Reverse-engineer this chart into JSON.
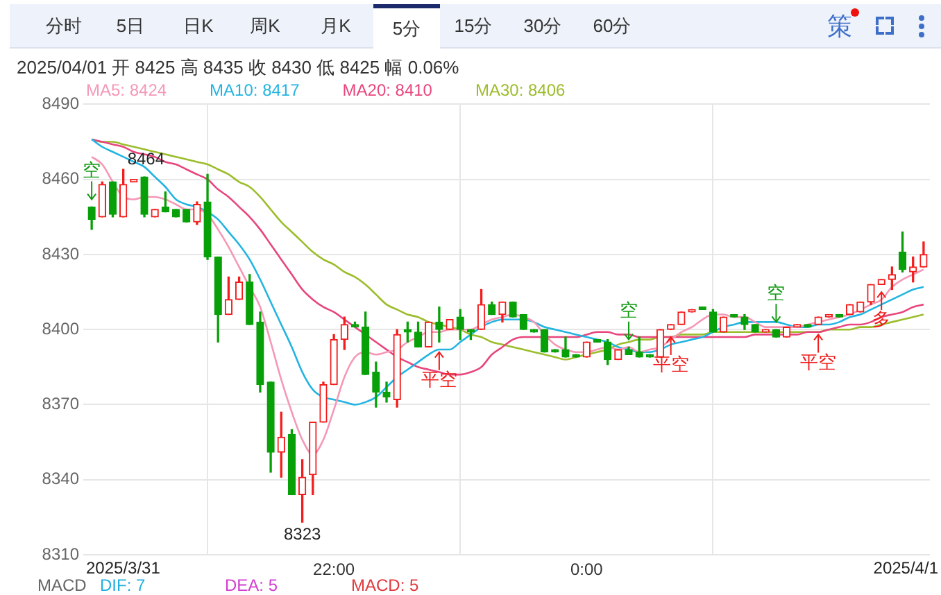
{
  "chart_data": {
    "type": "candlestick",
    "subtitle": "2025/04/01 开 8425 高 8435 收 8430 低 8425 幅 0.06%",
    "annotations": [
      "分时",
      "5日",
      "日K",
      "周K",
      "月K",
      "5分",
      "15分",
      "30分",
      "60分",
      "策",
      "2025/3/31",
      "2025/4/1",
      "MACD",
      "DIF: 7",
      "DEA: 5",
      "MACD: 5",
      {
        "text": "8464",
        "x": "2025-03-31T20:20",
        "y": 8464
      },
      {
        "text": "8323",
        "x": "2025-03-31T21:45",
        "y": 8323
      },
      {
        "text": "空",
        "x": "2025-03-31T20:05",
        "y": 8452
      },
      {
        "text": "平空",
        "x": "2025-03-31T22:50",
        "y": 8391
      },
      {
        "text": "空",
        "x": "2025-04-01T00:20",
        "y": 8396
      },
      {
        "text": "平空",
        "x": "2025-04-01T00:40",
        "y": 8397
      },
      {
        "text": "空",
        "x": "2025-04-01T01:30",
        "y": 8403
      },
      {
        "text": "平空",
        "x": "2025-04-01T01:50",
        "y": 8398
      },
      {
        "text": "多",
        "x": "2025-04-01T02:20",
        "y": 8415
      }
    ],
    "x": [
      "2025-03-31T20:05",
      "2025-03-31T20:10",
      "2025-03-31T20:15",
      "2025-03-31T20:20",
      "2025-03-31T20:25",
      "2025-03-31T20:30",
      "2025-03-31T20:35",
      "2025-03-31T20:40",
      "2025-03-31T20:45",
      "2025-03-31T20:50",
      "2025-03-31T20:55",
      "2025-03-31T21:00",
      "2025-03-31T21:05",
      "2025-03-31T21:10",
      "2025-03-31T21:15",
      "2025-03-31T21:20",
      "2025-03-31T21:25",
      "2025-03-31T21:30",
      "2025-03-31T21:35",
      "2025-03-31T21:40",
      "2025-03-31T21:45",
      "2025-03-31T21:50",
      "2025-03-31T21:55",
      "2025-03-31T22:00",
      "2025-03-31T22:05",
      "2025-03-31T22:10",
      "2025-03-31T22:15",
      "2025-03-31T22:20",
      "2025-03-31T22:25",
      "2025-03-31T22:30",
      "2025-03-31T22:35",
      "2025-03-31T22:40",
      "2025-03-31T22:45",
      "2025-03-31T22:50",
      "2025-03-31T22:55",
      "2025-03-31T23:00",
      "2025-03-31T23:05",
      "2025-03-31T23:10",
      "2025-03-31T23:15",
      "2025-03-31T23:20",
      "2025-03-31T23:25",
      "2025-03-31T23:30",
      "2025-03-31T23:35",
      "2025-03-31T23:40",
      "2025-03-31T23:45",
      "2025-03-31T23:50",
      "2025-03-31T23:55",
      "2025-04-01T00:00",
      "2025-04-01T00:05",
      "2025-04-01T00:10",
      "2025-04-01T00:15",
      "2025-04-01T00:20",
      "2025-04-01T00:25",
      "2025-04-01T00:30",
      "2025-04-01T00:35",
      "2025-04-01T00:40",
      "2025-04-01T00:45",
      "2025-04-01T00:50",
      "2025-04-01T00:55",
      "2025-04-01T01:00",
      "2025-04-01T01:05",
      "2025-04-01T01:10",
      "2025-04-01T01:15",
      "2025-04-01T01:20",
      "2025-04-01T01:25",
      "2025-04-01T01:30",
      "2025-04-01T01:35",
      "2025-04-01T01:40",
      "2025-04-01T01:45",
      "2025-04-01T01:50",
      "2025-04-01T01:55",
      "2025-04-01T02:00",
      "2025-04-01T02:05",
      "2025-04-01T02:10",
      "2025-04-01T02:15",
      "2025-04-01T02:20",
      "2025-04-01T02:25",
      "2025-04-01T02:30",
      "2025-04-01T02:35",
      "2025-04-01T02:40"
    ],
    "ohlc": [
      [
        8449,
        8449,
        8440,
        8444
      ],
      [
        8445,
        8459,
        8445,
        8458
      ],
      [
        8459,
        8459,
        8445,
        8446
      ],
      [
        8445,
        8464,
        8445,
        8458
      ],
      [
        8459,
        8460,
        8459,
        8460
      ],
      [
        8461,
        8461,
        8445,
        8446
      ],
      [
        8445,
        8448,
        8445,
        8448
      ],
      [
        8449,
        8455,
        8447,
        8447
      ],
      [
        8448,
        8448,
        8445,
        8445
      ],
      [
        8448,
        8448,
        8443,
        8443
      ],
      [
        8443,
        8451,
        8442,
        8450
      ],
      [
        8451,
        8462,
        8428,
        8429
      ],
      [
        8429,
        8429,
        8395,
        8406
      ],
      [
        8406,
        8421,
        8406,
        8412
      ],
      [
        8412,
        8421,
        8412,
        8419
      ],
      [
        8419,
        8422,
        8402,
        8402
      ],
      [
        8403,
        8407,
        8375,
        8378
      ],
      [
        8379,
        8379,
        8343,
        8351
      ],
      [
        8351,
        8367,
        8341,
        8357
      ],
      [
        8358,
        8360,
        8334,
        8334
      ],
      [
        8334,
        8348,
        8323,
        8341
      ],
      [
        8342,
        8363,
        8334,
        8363
      ],
      [
        8363,
        8379,
        8363,
        8378
      ],
      [
        8378,
        8398,
        8378,
        8396
      ],
      [
        8396,
        8405,
        8392,
        8402
      ],
      [
        8402,
        8403,
        8401,
        8401
      ],
      [
        8401,
        8407,
        8382,
        8382
      ],
      [
        8383,
        8387,
        8369,
        8375
      ],
      [
        8375,
        8379,
        8371,
        8373
      ],
      [
        8372,
        8400,
        8369,
        8398
      ],
      [
        8400,
        8403,
        8395,
        8399
      ],
      [
        8399,
        8403,
        8393,
        8393
      ],
      [
        8393,
        8403,
        8393,
        8403
      ],
      [
        8403,
        8409,
        8395,
        8400
      ],
      [
        8400,
        8404,
        8400,
        8404
      ],
      [
        8405,
        8408,
        8396,
        8400
      ],
      [
        8400,
        8400,
        8396,
        8399
      ],
      [
        8400,
        8416,
        8400,
        8410
      ],
      [
        8410,
        8411,
        8406,
        8406
      ],
      [
        8406,
        8411,
        8403,
        8411
      ],
      [
        8411,
        8411,
        8405,
        8405
      ],
      [
        8406,
        8406,
        8400,
        8400
      ],
      [
        8400,
        8400,
        8399,
        8399
      ],
      [
        8400,
        8400,
        8391,
        8391
      ],
      [
        8392,
        8392,
        8391,
        8391
      ],
      [
        8392,
        8397,
        8389,
        8389
      ],
      [
        8390,
        8390,
        8389,
        8389
      ],
      [
        8389,
        8395,
        8389,
        8395
      ],
      [
        8396,
        8396,
        8395,
        8395
      ],
      [
        8395,
        8396,
        8386,
        8388
      ],
      [
        8388,
        8392,
        8388,
        8392
      ],
      [
        8392,
        8393,
        8390,
        8390
      ],
      [
        8391,
        8397,
        8389,
        8389
      ],
      [
        8390,
        8390,
        8389,
        8389
      ],
      [
        8389,
        8400,
        8389,
        8400
      ],
      [
        8400,
        8402,
        8400,
        8402
      ],
      [
        8402,
        8407,
        8402,
        8407
      ],
      [
        8407,
        8408,
        8407,
        8408
      ],
      [
        8409,
        8409,
        8408,
        8408
      ],
      [
        8407,
        8408,
        8399,
        8399
      ],
      [
        8399,
        8405,
        8399,
        8405
      ],
      [
        8406,
        8406,
        8405,
        8405
      ],
      [
        8405,
        8406,
        8400,
        8402
      ],
      [
        8402,
        8402,
        8399,
        8399
      ],
      [
        8399,
        8400,
        8399,
        8400
      ],
      [
        8400,
        8400,
        8397,
        8397
      ],
      [
        8397,
        8401,
        8397,
        8401
      ],
      [
        8401,
        8402,
        8401,
        8402
      ],
      [
        8402,
        8402,
        8401,
        8401
      ],
      [
        8402,
        8405,
        8402,
        8405
      ],
      [
        8405,
        8406,
        8405,
        8406
      ],
      [
        8406,
        8406,
        8405,
        8405
      ],
      [
        8406,
        8410,
        8406,
        8410
      ],
      [
        8407,
        8411,
        8407,
        8411
      ],
      [
        8411,
        8418,
        8410,
        8418
      ],
      [
        8418,
        8420,
        8418,
        8420
      ],
      [
        8420,
        8425,
        8416,
        8422
      ],
      [
        8431,
        8439,
        8423,
        8424
      ],
      [
        8423,
        8429,
        8419,
        8425
      ],
      [
        8425,
        8435,
        8425,
        8430
      ]
    ],
    "series": [
      {
        "name": "MA5: 8424",
        "type": "line",
        "color": "#f598b6",
        "values": [
          8469,
          8466,
          8459,
          8453,
          8452,
          8453,
          8453,
          8452,
          8450,
          8448,
          8448,
          8446,
          8440,
          8433,
          8425,
          8417,
          8409,
          8395,
          8380,
          8367,
          8356,
          8350,
          8356,
          8368,
          8381,
          8389,
          8391,
          8390,
          8391,
          8392,
          8395,
          8397,
          8399,
          8399,
          8400,
          8400,
          8400,
          8402,
          8404,
          8405,
          8406,
          8405,
          8403,
          8398,
          8394,
          8392,
          8391,
          8391,
          8392,
          8393,
          8392,
          8393,
          8391,
          8392,
          8393,
          8396,
          8399,
          8401,
          8404,
          8406,
          8406,
          8405,
          8405,
          8403,
          8401,
          8401,
          8401,
          8401,
          8402,
          8403,
          8404,
          8405,
          8406,
          8408,
          8410,
          8412,
          8417,
          8420,
          8422,
          8424
        ]
      },
      {
        "name": "MA10: 8417",
        "type": "line",
        "color": "#23b4e2",
        "values": [
          8476,
          8473,
          8471,
          8469,
          8467,
          8465,
          8461,
          8457,
          8452,
          8450,
          8449,
          8447,
          8444,
          8439,
          8434,
          8428,
          8420,
          8411,
          8402,
          8393,
          8383,
          8376,
          8373,
          8372,
          8371,
          8370,
          8371,
          8373,
          8377,
          8381,
          8384,
          8387,
          8390,
          8392,
          8392,
          8395,
          8398,
          8401,
          8403,
          8404,
          8404,
          8404,
          8403,
          8401,
          8400,
          8399,
          8398,
          8397,
          8396,
          8395,
          8393,
          8392,
          8391,
          8391,
          8392,
          8394,
          8395,
          8396,
          8397,
          8399,
          8401,
          8402,
          8403,
          8403,
          8403,
          8403,
          8402,
          8401,
          8401,
          8402,
          8402,
          8403,
          8405,
          8406,
          8408,
          8410,
          8412,
          8414,
          8416,
          8417
        ]
      },
      {
        "name": "MA20: 8410",
        "type": "line",
        "color": "#e8467c",
        "values": [
          8476,
          8475,
          8474,
          8473,
          8471,
          8470,
          8469,
          8467,
          8466,
          8464,
          8462,
          8460,
          8456,
          8453,
          8449,
          8445,
          8440,
          8434,
          8428,
          8422,
          8416,
          8412,
          8409,
          8407,
          8404,
          8401,
          8398,
          8395,
          8392,
          8389,
          8387,
          8385,
          8384,
          8383,
          8382,
          8382,
          8383,
          8385,
          8390,
          8393,
          8396,
          8397,
          8397,
          8397,
          8397,
          8397,
          8397,
          8398,
          8399,
          8399,
          8398,
          8398,
          8397,
          8397,
          8397,
          8397,
          8397,
          8397,
          8397,
          8397,
          8397,
          8397,
          8397,
          8398,
          8398,
          8398,
          8398,
          8398,
          8399,
          8399,
          8400,
          8401,
          8402,
          8402,
          8403,
          8405,
          8406,
          8407,
          8409,
          8410
        ]
      },
      {
        "name": "MA30: 8406",
        "type": "line",
        "color": "#9cbd2c",
        "values": [
          8476,
          8475,
          8475,
          8474,
          8473,
          8472,
          8471,
          8470,
          8469,
          8468,
          8467,
          8466,
          8464,
          8462,
          8459,
          8457,
          8453,
          8448,
          8443,
          8439,
          8435,
          8431,
          8428,
          8426,
          8423,
          8421,
          8418,
          8414,
          8410,
          8408,
          8406,
          8405,
          8403,
          8402,
          8401,
          8400,
          8398,
          8397,
          8395,
          8394,
          8393,
          8392,
          8391,
          8390,
          8389,
          8388,
          8389,
          8390,
          8391,
          8392,
          8394,
          8395,
          8396,
          8396,
          8397,
          8397,
          8398,
          8398,
          8398,
          8399,
          8399,
          8399,
          8399,
          8399,
          8399,
          8399,
          8399,
          8399,
          8399,
          8399,
          8400,
          8400,
          8400,
          8401,
          8401,
          8402,
          8403,
          8404,
          8405,
          8406
        ]
      }
    ],
    "xlim": [
      "2025-03-31T20:01",
      "2025-04-01T02:43"
    ],
    "xticks": [
      {
        "value": "2025-03-31T22:00",
        "label": "22:00"
      },
      {
        "value": "2025-04-01T00:00",
        "label": "0:00"
      }
    ],
    "ylim": [
      8310,
      8490
    ],
    "yticks": [
      8310,
      8340,
      8370,
      8400,
      8430,
      8460,
      8490
    ],
    "grid": true,
    "legend": "top left"
  }
}
